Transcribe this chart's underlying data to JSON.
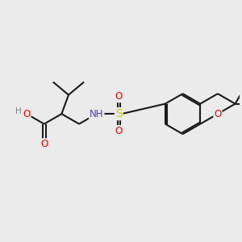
{
  "background_color": "#ebebeb",
  "bond_color": "#1a1a1a",
  "bond_width": 1.5,
  "atom_colors": {
    "O": "#ff0000",
    "N": "#4444aa",
    "S": "#cccc00",
    "H": "#808080",
    "C": "#1a1a1a"
  },
  "font_size": 8.5,
  "fig_bg": "#ebebeb"
}
